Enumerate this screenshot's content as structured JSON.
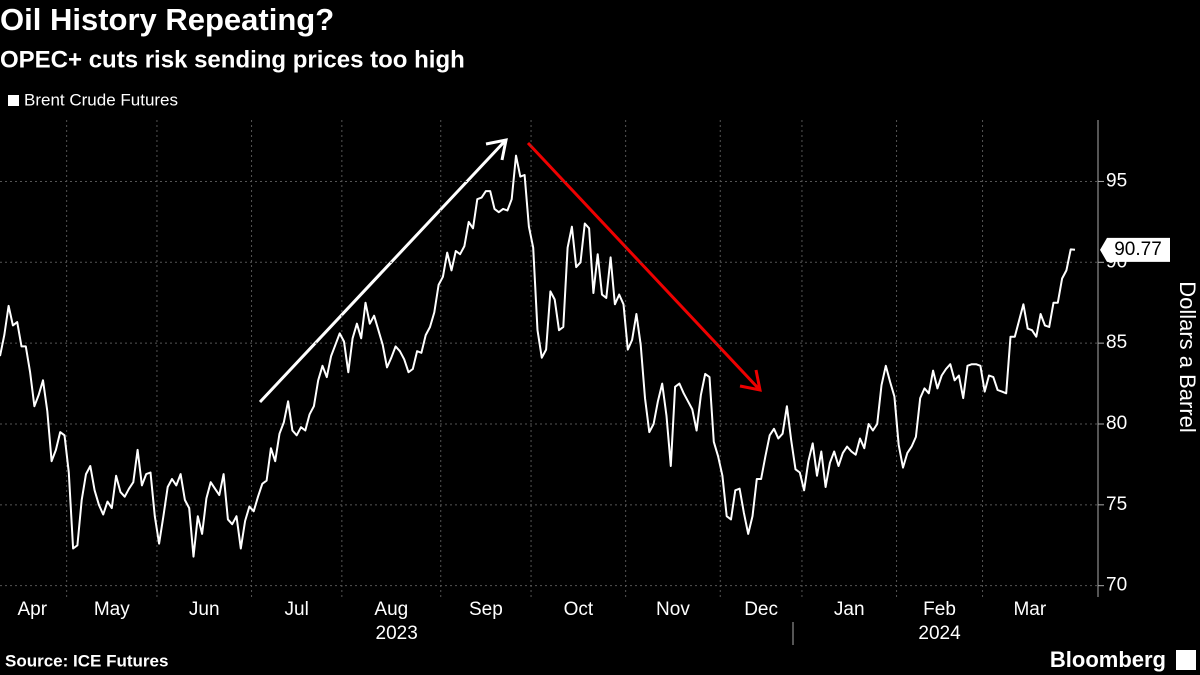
{
  "chart_data": {
    "type": "line",
    "title": "Oil History Repeating?",
    "subtitle": "OPEC+ cuts risk sending prices too high",
    "y_label": "Dollars a Barrel",
    "source": "Source: ICE Futures",
    "brand": "Bloomberg",
    "series_name": "Brent Crude Futures",
    "color": "#ffffff",
    "ylim": [
      69.3,
      98.8
    ],
    "yticks": [
      70,
      75,
      80,
      85,
      90,
      95
    ],
    "grid": true,
    "years": [
      "2023",
      "2024"
    ],
    "groups": [
      {
        "label": "Apr",
        "values": [
          84.2,
          85.5,
          87.3,
          86.1,
          86.3,
          84.8,
          84.8,
          83.2,
          81.1,
          81.8,
          82.7,
          80.8,
          77.7,
          78.4,
          79.5,
          79.3
        ]
      },
      {
        "label": "May",
        "values": [
          77.0,
          72.3,
          72.5,
          75.3,
          76.9,
          77.4,
          75.9,
          75.0,
          74.4,
          75.2,
          74.8,
          76.8,
          75.8,
          75.5,
          76.0,
          76.4,
          78.4,
          76.2,
          76.9,
          77.0,
          74.3
        ]
      },
      {
        "label": "Jun",
        "values": [
          72.6,
          74.3,
          76.1,
          76.6,
          76.2,
          76.9,
          75.3,
          74.8,
          71.8,
          74.3,
          73.2,
          75.4,
          76.4,
          76.0,
          75.6,
          76.9,
          74.1,
          73.8,
          74.3,
          72.3,
          74.0,
          74.9
        ]
      },
      {
        "label": "Jul",
        "values": [
          74.6,
          75.5,
          76.3,
          76.5,
          78.5,
          77.7,
          79.4,
          80.1,
          81.4,
          79.6,
          79.3,
          79.8,
          79.6,
          80.6,
          81.1,
          82.7,
          83.6,
          82.9,
          84.2,
          84.9,
          85.6
        ]
      },
      {
        "label": "Aug",
        "values": [
          85.1,
          83.2,
          85.3,
          86.2,
          85.3,
          87.5,
          86.2,
          86.7,
          85.8,
          84.9,
          83.5,
          84.1,
          84.8,
          84.5,
          84.0,
          83.2,
          83.4,
          84.5,
          84.4,
          85.5,
          86.0,
          86.9,
          88.6
        ]
      },
      {
        "label": "Sep",
        "values": [
          89.1,
          90.6,
          89.5,
          90.7,
          90.5,
          91.0,
          92.5,
          92.1,
          93.9,
          94.0,
          94.4,
          94.4,
          93.3,
          93.1,
          93.3,
          93.2,
          93.9,
          96.6,
          95.3,
          95.4,
          92.2
        ]
      },
      {
        "label": "Oct",
        "values": [
          90.9,
          85.8,
          84.1,
          84.6,
          88.2,
          87.7,
          85.8,
          86.0,
          90.9,
          92.2,
          89.7,
          90.0,
          92.4,
          92.1,
          88.1,
          90.5,
          88.0,
          87.8,
          90.3,
          87.4,
          88.0,
          87.4
        ]
      },
      {
        "label": "Nov",
        "values": [
          84.6,
          85.2,
          86.8,
          84.9,
          81.6,
          79.5,
          80.0,
          81.4,
          82.5,
          80.5,
          77.4,
          82.3,
          82.5,
          81.9,
          81.4,
          80.9,
          79.6,
          81.8,
          83.1,
          82.9,
          78.9,
          78.0
        ]
      },
      {
        "label": "Dec",
        "values": [
          76.8,
          74.3,
          74.1,
          75.9,
          76.0,
          74.5,
          73.2,
          74.3,
          76.6,
          76.6,
          78.0,
          79.3,
          79.7,
          79.1,
          79.4,
          81.1,
          79.0,
          77.2,
          77.0
        ]
      },
      {
        "label": "Jan",
        "values": [
          75.9,
          77.7,
          78.8,
          76.8,
          78.3,
          76.1,
          77.6,
          78.3,
          77.4,
          78.2,
          78.6,
          78.3,
          78.1,
          79.1,
          78.5,
          80.0,
          79.6,
          80.0,
          82.4,
          83.6,
          82.6,
          81.7
        ]
      },
      {
        "label": "Feb",
        "values": [
          78.7,
          77.3,
          78.2,
          78.6,
          79.2,
          81.6,
          82.2,
          81.9,
          83.3,
          82.2,
          83.0,
          83.4,
          83.7,
          82.7,
          83.0,
          81.6,
          83.6,
          83.7,
          83.7,
          83.6
        ]
      },
      {
        "label": "Mar",
        "values": [
          82.0,
          83.0,
          82.9,
          82.1,
          82.0,
          81.9,
          85.4,
          85.4,
          86.4,
          87.4,
          85.9,
          85.8,
          85.4,
          86.8,
          86.1,
          86.0,
          87.5,
          87.5,
          89.0,
          89.5,
          90.8,
          90.77
        ]
      }
    ]
  }
}
